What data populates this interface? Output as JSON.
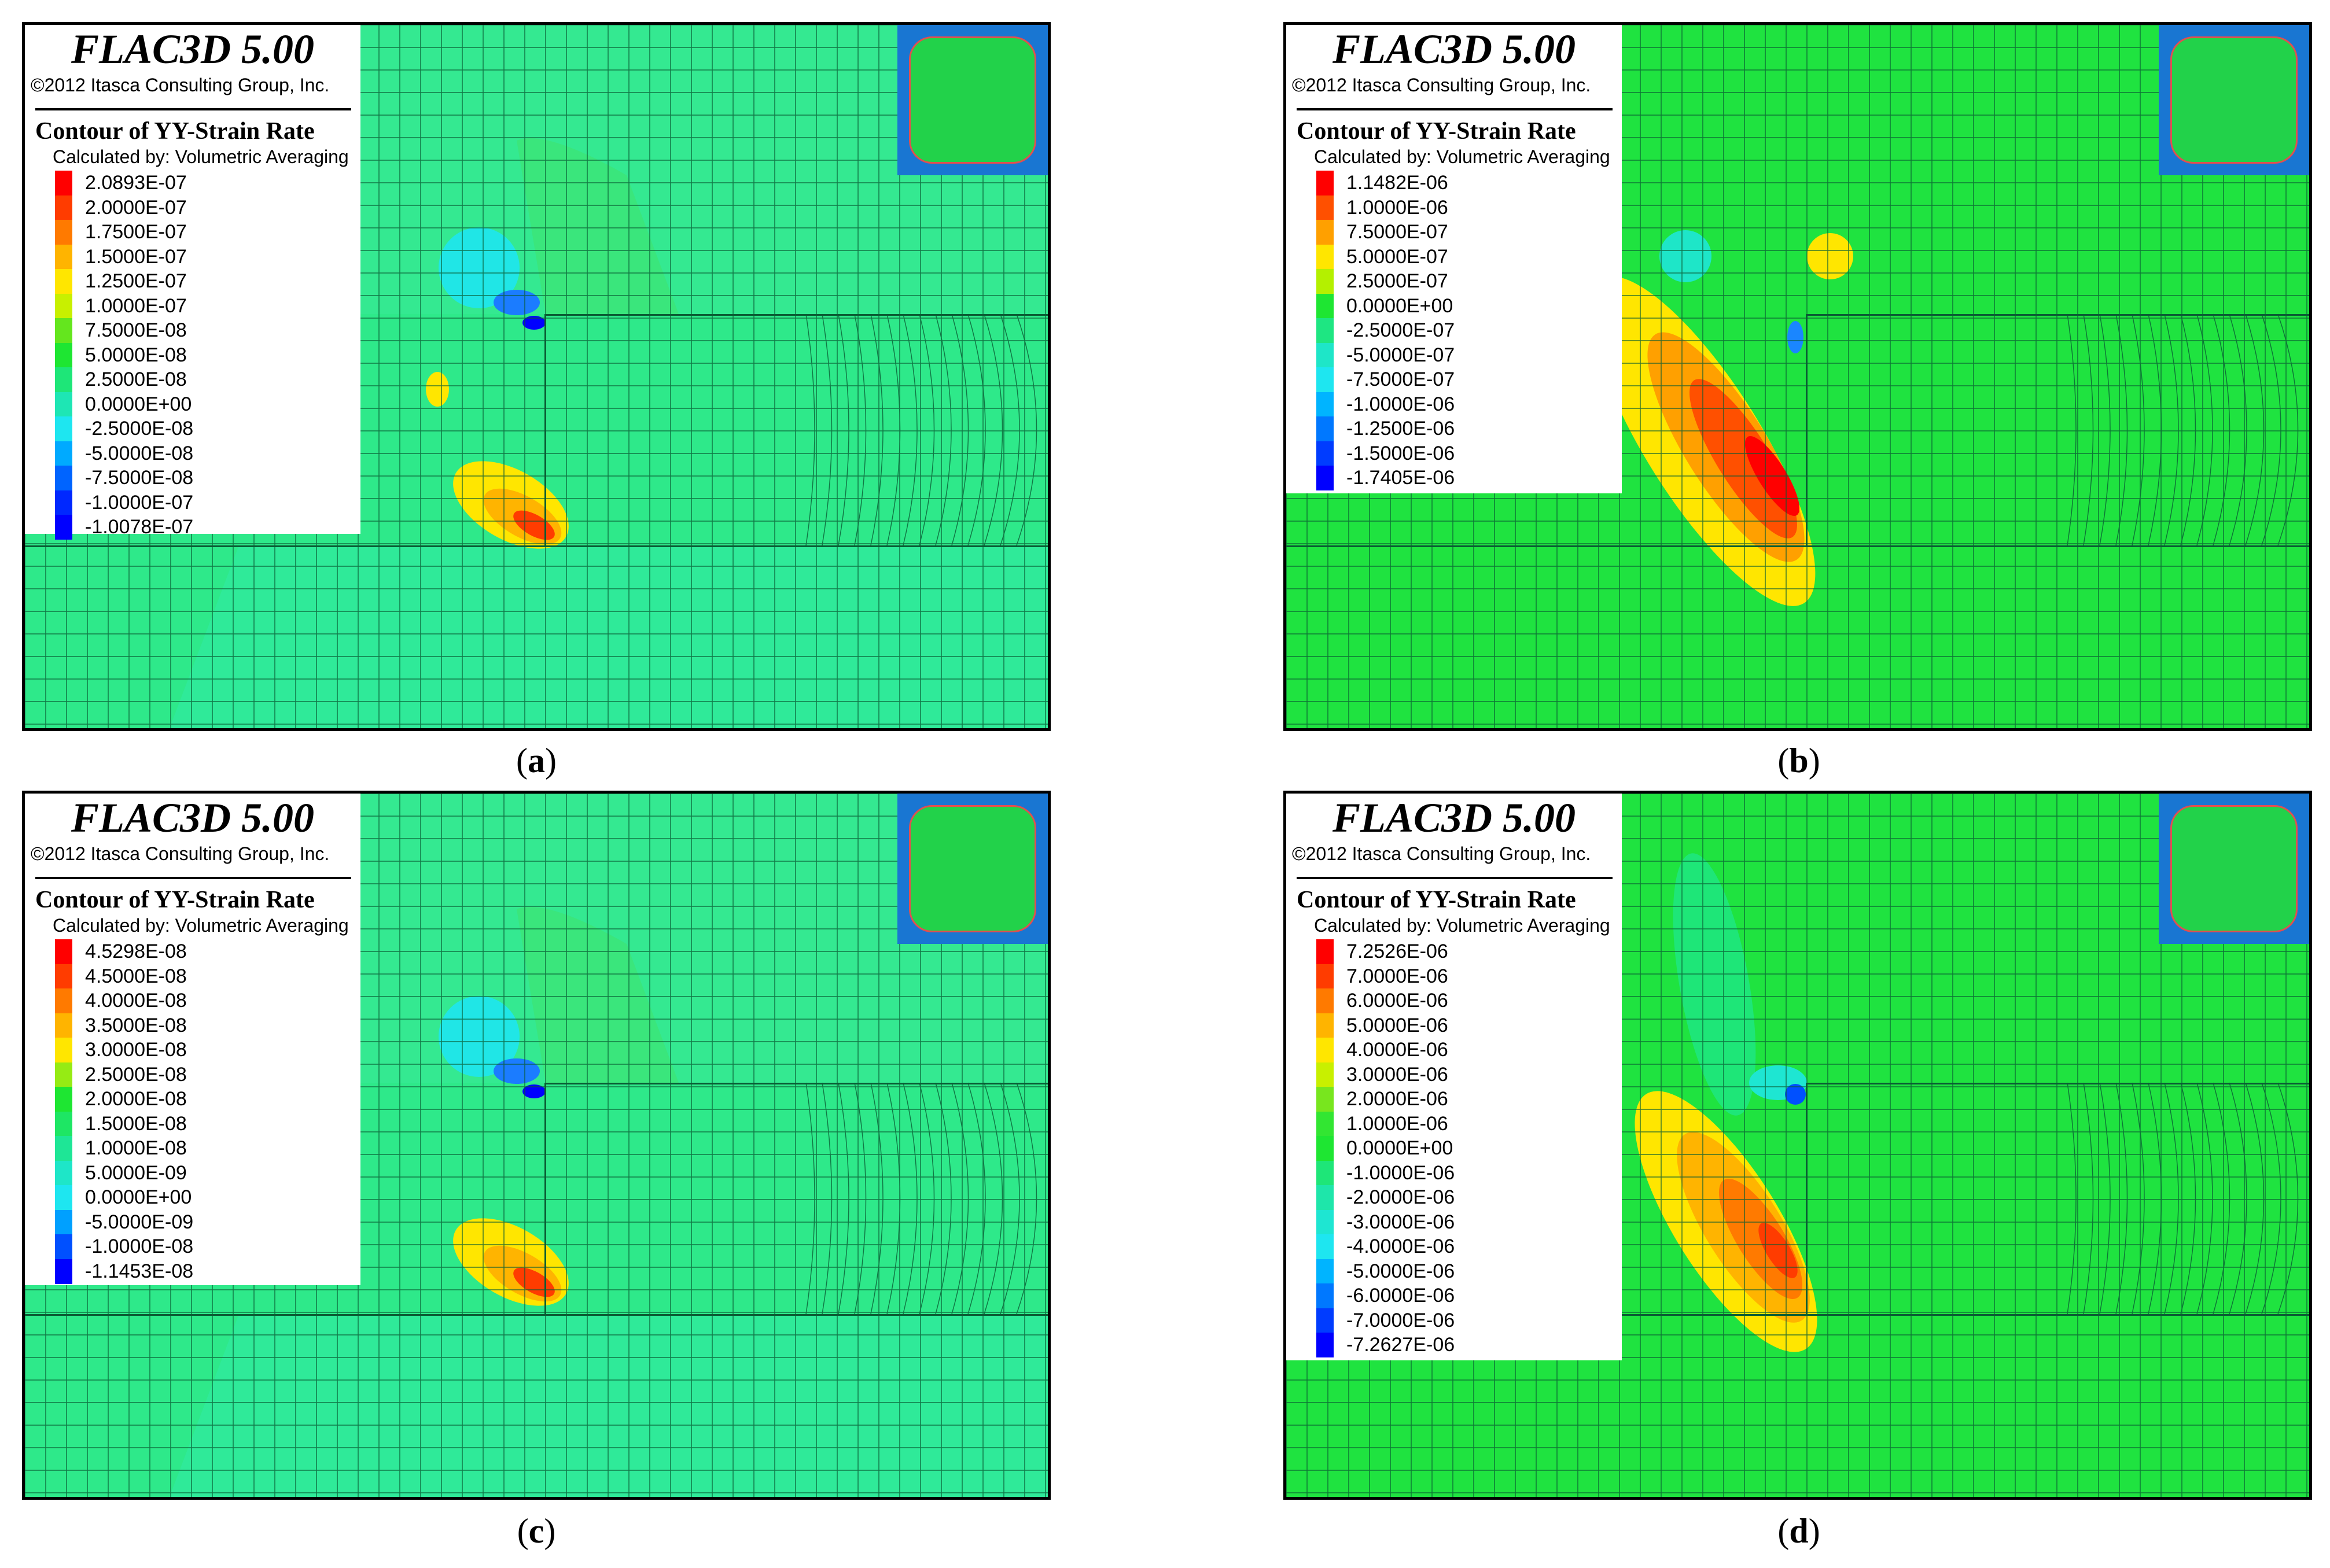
{
  "panels": [
    {
      "id": "a",
      "caption_letter": "a",
      "app_title": "FLAC3D 5.00",
      "copyright": "©2012 Itasca Consulting Group, Inc.",
      "contour_title": "Contour of YY-Strain Rate",
      "calc_method": "Calculated by: Volumetric Averaging",
      "background_color": "#2ee98a",
      "legend": [
        {
          "value": "2.0893E-07",
          "color": "#ff0000"
        },
        {
          "value": "2.0000E-07",
          "color": "#ff3c00"
        },
        {
          "value": "1.7500E-07",
          "color": "#ff7a00"
        },
        {
          "value": "1.5000E-07",
          "color": "#ffb400"
        },
        {
          "value": "1.2500E-07",
          "color": "#ffe600"
        },
        {
          "value": "1.0000E-07",
          "color": "#c8f000"
        },
        {
          "value": "7.5000E-08",
          "color": "#64e61e"
        },
        {
          "value": "5.0000E-08",
          "color": "#1ee632"
        },
        {
          "value": "2.5000E-08",
          "color": "#1ee678"
        },
        {
          "value": "0.0000E+00",
          "color": "#1ee6b4"
        },
        {
          "value": "-2.5000E-08",
          "color": "#1ee6f0"
        },
        {
          "value": "-5.0000E-08",
          "color": "#00aaff"
        },
        {
          "value": "-7.5000E-08",
          "color": "#0064ff"
        },
        {
          "value": "-1.0000E-07",
          "color": "#0028ff"
        },
        {
          "value": "-1.0078E-07",
          "color": "#0000ff"
        }
      ]
    },
    {
      "id": "b",
      "caption_letter": "b",
      "app_title": "FLAC3D 5.00",
      "copyright": "©2012 Itasca Consulting Group, Inc.",
      "contour_title": "Contour of YY-Strain Rate",
      "calc_method": "Calculated by: Volumetric Averaging",
      "background_color": "#1fe340",
      "legend": [
        {
          "value": "1.1482E-06",
          "color": "#ff0000"
        },
        {
          "value": "1.0000E-06",
          "color": "#ff5000"
        },
        {
          "value": "7.5000E-07",
          "color": "#ffa000"
        },
        {
          "value": "5.0000E-07",
          "color": "#ffe600"
        },
        {
          "value": "2.5000E-07",
          "color": "#b4f000"
        },
        {
          "value": "0.0000E+00",
          "color": "#1ee632"
        },
        {
          "value": "-2.5000E-07",
          "color": "#1ee682"
        },
        {
          "value": "-5.0000E-07",
          "color": "#1ee6c8"
        },
        {
          "value": "-7.5000E-07",
          "color": "#1ee6f0"
        },
        {
          "value": "-1.0000E-06",
          "color": "#00b4ff"
        },
        {
          "value": "-1.2500E-06",
          "color": "#0078ff"
        },
        {
          "value": "-1.5000E-06",
          "color": "#003cff"
        },
        {
          "value": "-1.7405E-06",
          "color": "#0000ff"
        }
      ]
    },
    {
      "id": "c",
      "caption_letter": "c",
      "app_title": "FLAC3D 5.00",
      "copyright": "©2012 Itasca Consulting Group, Inc.",
      "contour_title": "Contour of YY-Strain Rate",
      "calc_method": "Calculated by: Volumetric Averaging",
      "background_color": "#2ee98a",
      "legend": [
        {
          "value": "4.5298E-08",
          "color": "#ff0000"
        },
        {
          "value": "4.5000E-08",
          "color": "#ff3c00"
        },
        {
          "value": "4.0000E-08",
          "color": "#ff7a00"
        },
        {
          "value": "3.5000E-08",
          "color": "#ffb400"
        },
        {
          "value": "3.0000E-08",
          "color": "#ffe600"
        },
        {
          "value": "2.5000E-08",
          "color": "#96eb14"
        },
        {
          "value": "2.0000E-08",
          "color": "#1ee632"
        },
        {
          "value": "1.5000E-08",
          "color": "#1ee664"
        },
        {
          "value": "1.0000E-08",
          "color": "#1ee696"
        },
        {
          "value": "5.0000E-09",
          "color": "#1ee6c8"
        },
        {
          "value": "0.0000E+00",
          "color": "#1ee6f0"
        },
        {
          "value": "-5.0000E-09",
          "color": "#00a0ff"
        },
        {
          "value": "-1.0000E-08",
          "color": "#0050ff"
        },
        {
          "value": "-1.1453E-08",
          "color": "#0000ff"
        }
      ]
    },
    {
      "id": "d",
      "caption_letter": "d",
      "app_title": "FLAC3D 5.00",
      "copyright": "©2012 Itasca Consulting Group, Inc.",
      "contour_title": "Contour of YY-Strain Rate",
      "calc_method": "Calculated by: Volumetric Averaging",
      "background_color": "#1fe340",
      "legend": [
        {
          "value": "7.2526E-06",
          "color": "#ff0000"
        },
        {
          "value": "7.0000E-06",
          "color": "#ff3c00"
        },
        {
          "value": "6.0000E-06",
          "color": "#ff7a00"
        },
        {
          "value": "5.0000E-06",
          "color": "#ffb400"
        },
        {
          "value": "4.0000E-06",
          "color": "#ffe600"
        },
        {
          "value": "3.0000E-06",
          "color": "#c8f000"
        },
        {
          "value": "2.0000E-06",
          "color": "#78e61e"
        },
        {
          "value": "1.0000E-06",
          "color": "#32e632"
        },
        {
          "value": "0.0000E+00",
          "color": "#1ee632"
        },
        {
          "value": "-1.0000E-06",
          "color": "#1ee678"
        },
        {
          "value": "-2.0000E-06",
          "color": "#1ee6aa"
        },
        {
          "value": "-3.0000E-06",
          "color": "#1ee6d2"
        },
        {
          "value": "-4.0000E-06",
          "color": "#1ee6f0"
        },
        {
          "value": "-5.0000E-06",
          "color": "#00b4ff"
        },
        {
          "value": "-6.0000E-06",
          "color": "#0078ff"
        },
        {
          "value": "-7.0000E-06",
          "color": "#003cff"
        },
        {
          "value": "-7.2627E-06",
          "color": "#0000ff"
        }
      ]
    }
  ]
}
